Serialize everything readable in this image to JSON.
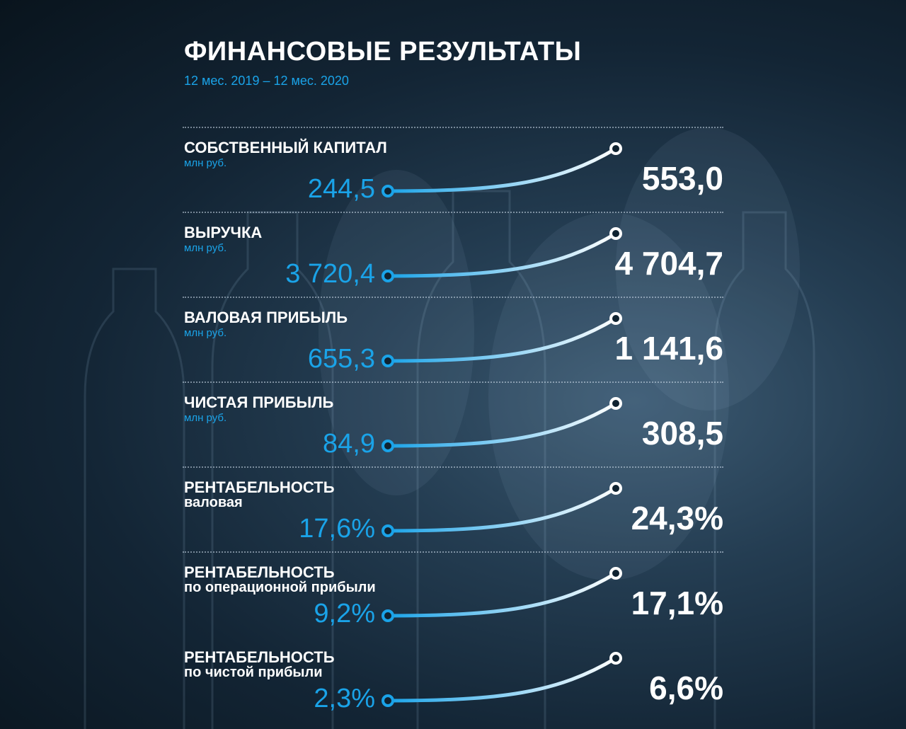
{
  "header": {
    "title": "ФИНАНСОВЫЕ РЕЗУЛЬТАТЫ",
    "period": "12 мес. 2019 – 12 мес. 2020"
  },
  "metrics": [
    {
      "name": "СОБСТВЕННЫЙ КАПИТАЛ",
      "unit": "млн руб.",
      "previous": "244,5",
      "current": "553,0"
    },
    {
      "name": "ВЫРУЧКА",
      "unit": "млн руб.",
      "previous": "3 720,4",
      "current": "4 704,7"
    },
    {
      "name": "ВАЛОВАЯ ПРИБЫЛЬ",
      "unit": "млн руб.",
      "previous": "655,3",
      "current": "1 141,6"
    },
    {
      "name": "ЧИСТАЯ ПРИБЫЛЬ",
      "unit": "млн руб.",
      "previous": "84,9",
      "current": "308,5"
    },
    {
      "name": "РЕНТАБЕЛЬНОСТЬ",
      "subtitle": "валовая",
      "previous": "17,6%",
      "current": "24,3%"
    },
    {
      "name": "РЕНТАБЕЛЬНОСТЬ",
      "subtitle": "по операционной прибыли",
      "previous": "9,2%",
      "current": "17,1%"
    },
    {
      "name": "РЕНТАБЕЛЬНОСТЬ",
      "subtitle": "по чистой прибыли",
      "previous": "2,3%",
      "current": "6,6%"
    }
  ],
  "colors": {
    "accent": "#1aa3e8",
    "text": "#ffffff",
    "background": "#132535"
  }
}
